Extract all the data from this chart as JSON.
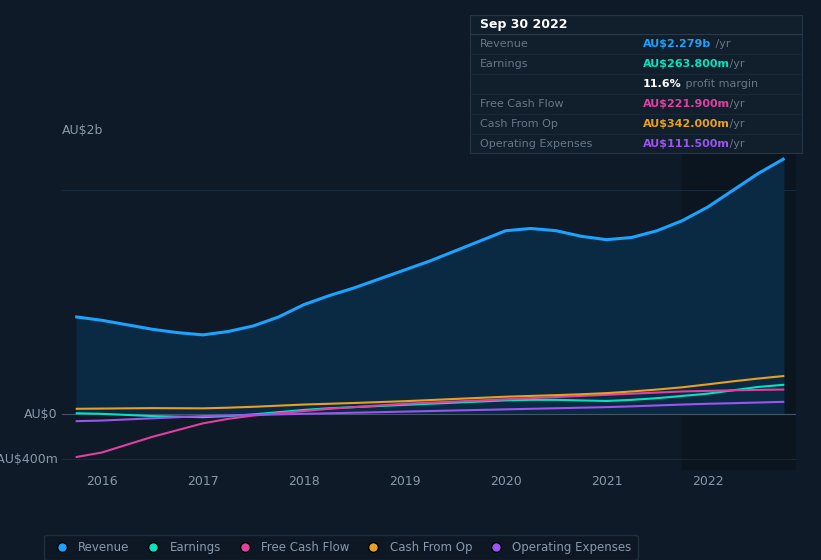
{
  "bg_color": "#0e1a27",
  "plot_bg_color": "#0e1a27",
  "grid_color": "#1c2e42",
  "text_color": "#8899aa",
  "x_years": [
    2015.75,
    2016.0,
    2016.25,
    2016.5,
    2016.75,
    2017.0,
    2017.25,
    2017.5,
    2017.75,
    2018.0,
    2018.25,
    2018.5,
    2018.75,
    2019.0,
    2019.25,
    2019.5,
    2019.75,
    2020.0,
    2020.25,
    2020.5,
    2020.75,
    2021.0,
    2021.25,
    2021.5,
    2021.75,
    2022.0,
    2022.25,
    2022.5,
    2022.75
  ],
  "revenue": [
    870,
    840,
    800,
    760,
    730,
    710,
    740,
    790,
    870,
    980,
    1060,
    1130,
    1210,
    1290,
    1370,
    1460,
    1550,
    1640,
    1660,
    1640,
    1590,
    1560,
    1580,
    1640,
    1730,
    1850,
    2000,
    2150,
    2279
  ],
  "earnings": [
    10,
    5,
    -5,
    -15,
    -20,
    -25,
    -15,
    0,
    20,
    40,
    55,
    65,
    75,
    85,
    95,
    105,
    115,
    125,
    130,
    130,
    125,
    120,
    130,
    145,
    165,
    185,
    215,
    245,
    264
  ],
  "free_cash_flow": [
    -380,
    -340,
    -270,
    -200,
    -140,
    -80,
    -40,
    -10,
    10,
    30,
    50,
    65,
    80,
    95,
    105,
    115,
    125,
    135,
    145,
    155,
    165,
    175,
    185,
    195,
    205,
    210,
    215,
    219,
    222
  ],
  "cash_from_op": [
    50,
    52,
    54,
    56,
    55,
    54,
    60,
    68,
    78,
    88,
    95,
    102,
    110,
    118,
    128,
    138,
    148,
    158,
    165,
    172,
    180,
    190,
    205,
    222,
    242,
    268,
    295,
    320,
    342
  ],
  "operating_expenses": [
    -60,
    -55,
    -45,
    -35,
    -25,
    -15,
    -10,
    -5,
    0,
    5,
    10,
    15,
    20,
    25,
    30,
    35,
    40,
    45,
    50,
    55,
    60,
    65,
    72,
    80,
    88,
    95,
    100,
    106,
    112
  ],
  "revenue_color": "#1aa3ff",
  "earnings_color": "#00e5c0",
  "free_cash_flow_color": "#e040a0",
  "cash_from_op_color": "#e8a020",
  "operating_expenses_color": "#9955ee",
  "revenue_fill_color": "#0a2a44",
  "earnings_neg_fill_color": "#3a0808",
  "tooltip_bg": "#111e2c",
  "tooltip_border": "#253545",
  "shaded_bg": "#0a1520",
  "x_ticks": [
    2016,
    2017,
    2018,
    2019,
    2020,
    2021,
    2022
  ],
  "xlim": [
    2015.6,
    2022.88
  ],
  "ylim": [
    -500,
    2400
  ],
  "shade_start": 2021.75
}
